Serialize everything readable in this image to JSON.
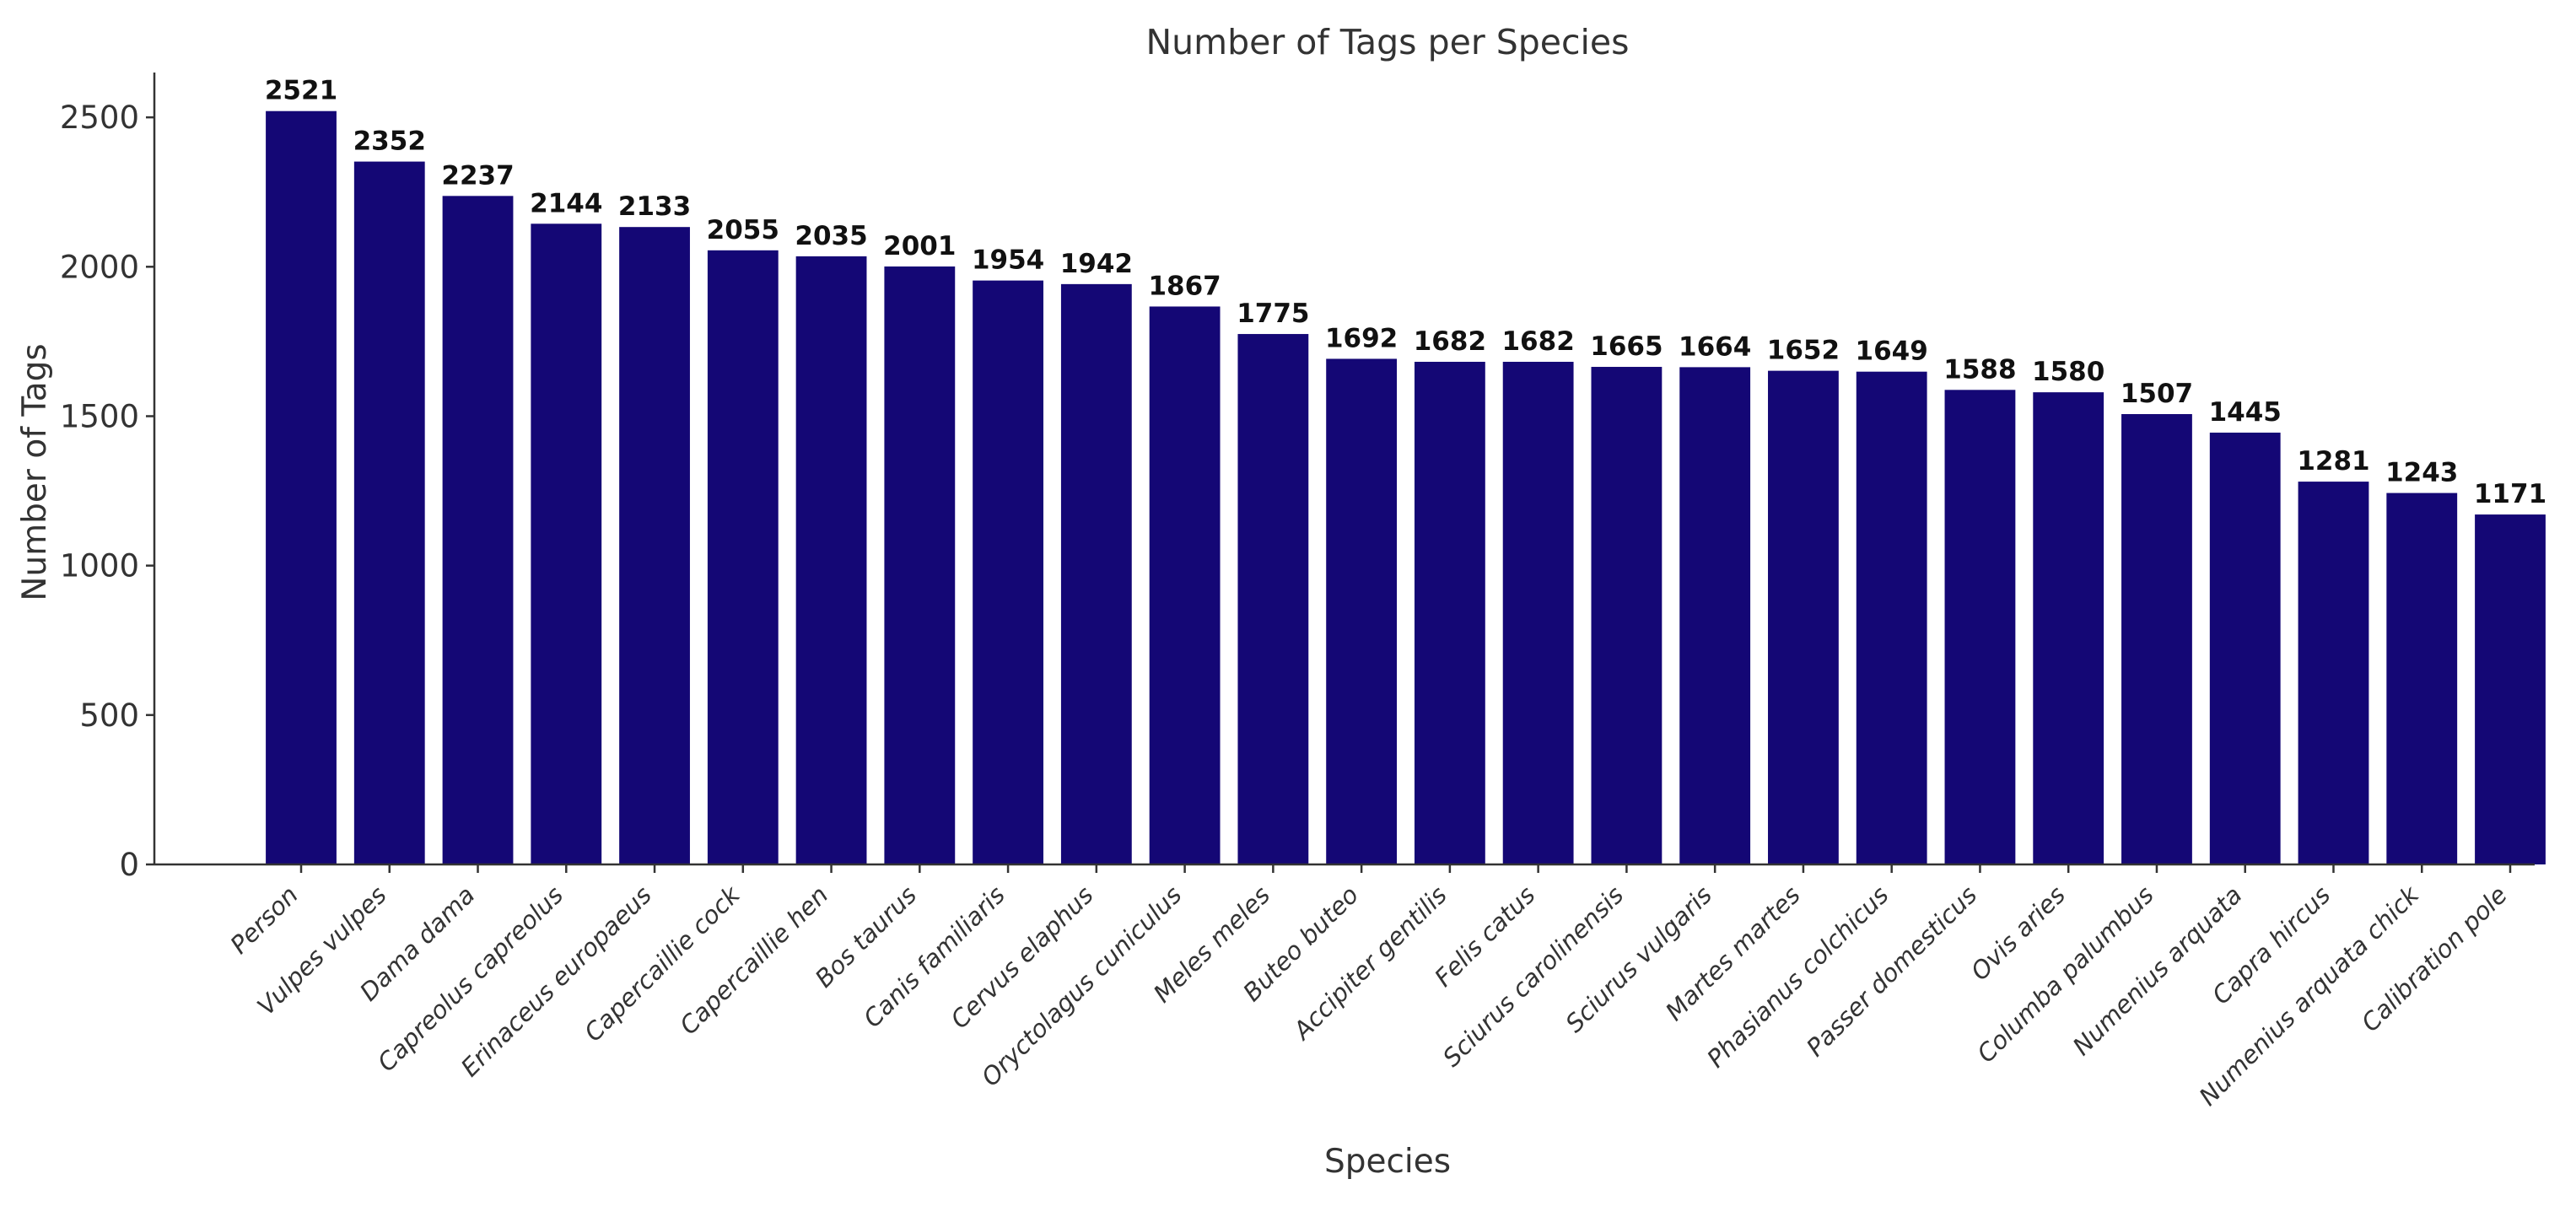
{
  "chart_data": {
    "type": "bar",
    "title": "Number of Tags per Species",
    "xlabel": "Species",
    "ylabel": "Number of Tags",
    "ylim": [
      0,
      2650
    ],
    "yticks": [
      0,
      500,
      1000,
      1500,
      2000,
      2500
    ],
    "grid": false,
    "bar_color": "#140775",
    "categories": [
      "Person",
      "Vulpes vulpes",
      "Dama dama",
      "Capreolus capreolus",
      "Erinaceus europaeus",
      "Capercaillie cock",
      "Capercaillie hen",
      "Bos taurus",
      "Canis familiaris",
      "Cervus elaphus",
      "Oryctolagus cuniculus",
      "Meles meles",
      "Buteo buteo",
      "Accipiter gentilis",
      "Felis catus",
      "Sciurus carolinensis",
      "Sciurus vulgaris",
      "Martes martes",
      "Phasianus colchicus",
      "Passer domesticus",
      "Ovis aries",
      "Columba palumbus",
      "Numenius arquata",
      "Capra hircus",
      "Numenius arquata chick",
      "Calibration pole"
    ],
    "values": [
      2521,
      2352,
      2237,
      2144,
      2133,
      2055,
      2035,
      2001,
      1954,
      1942,
      1867,
      1775,
      1692,
      1682,
      1682,
      1665,
      1664,
      1652,
      1649,
      1588,
      1580,
      1507,
      1445,
      1281,
      1243,
      1171
    ]
  }
}
